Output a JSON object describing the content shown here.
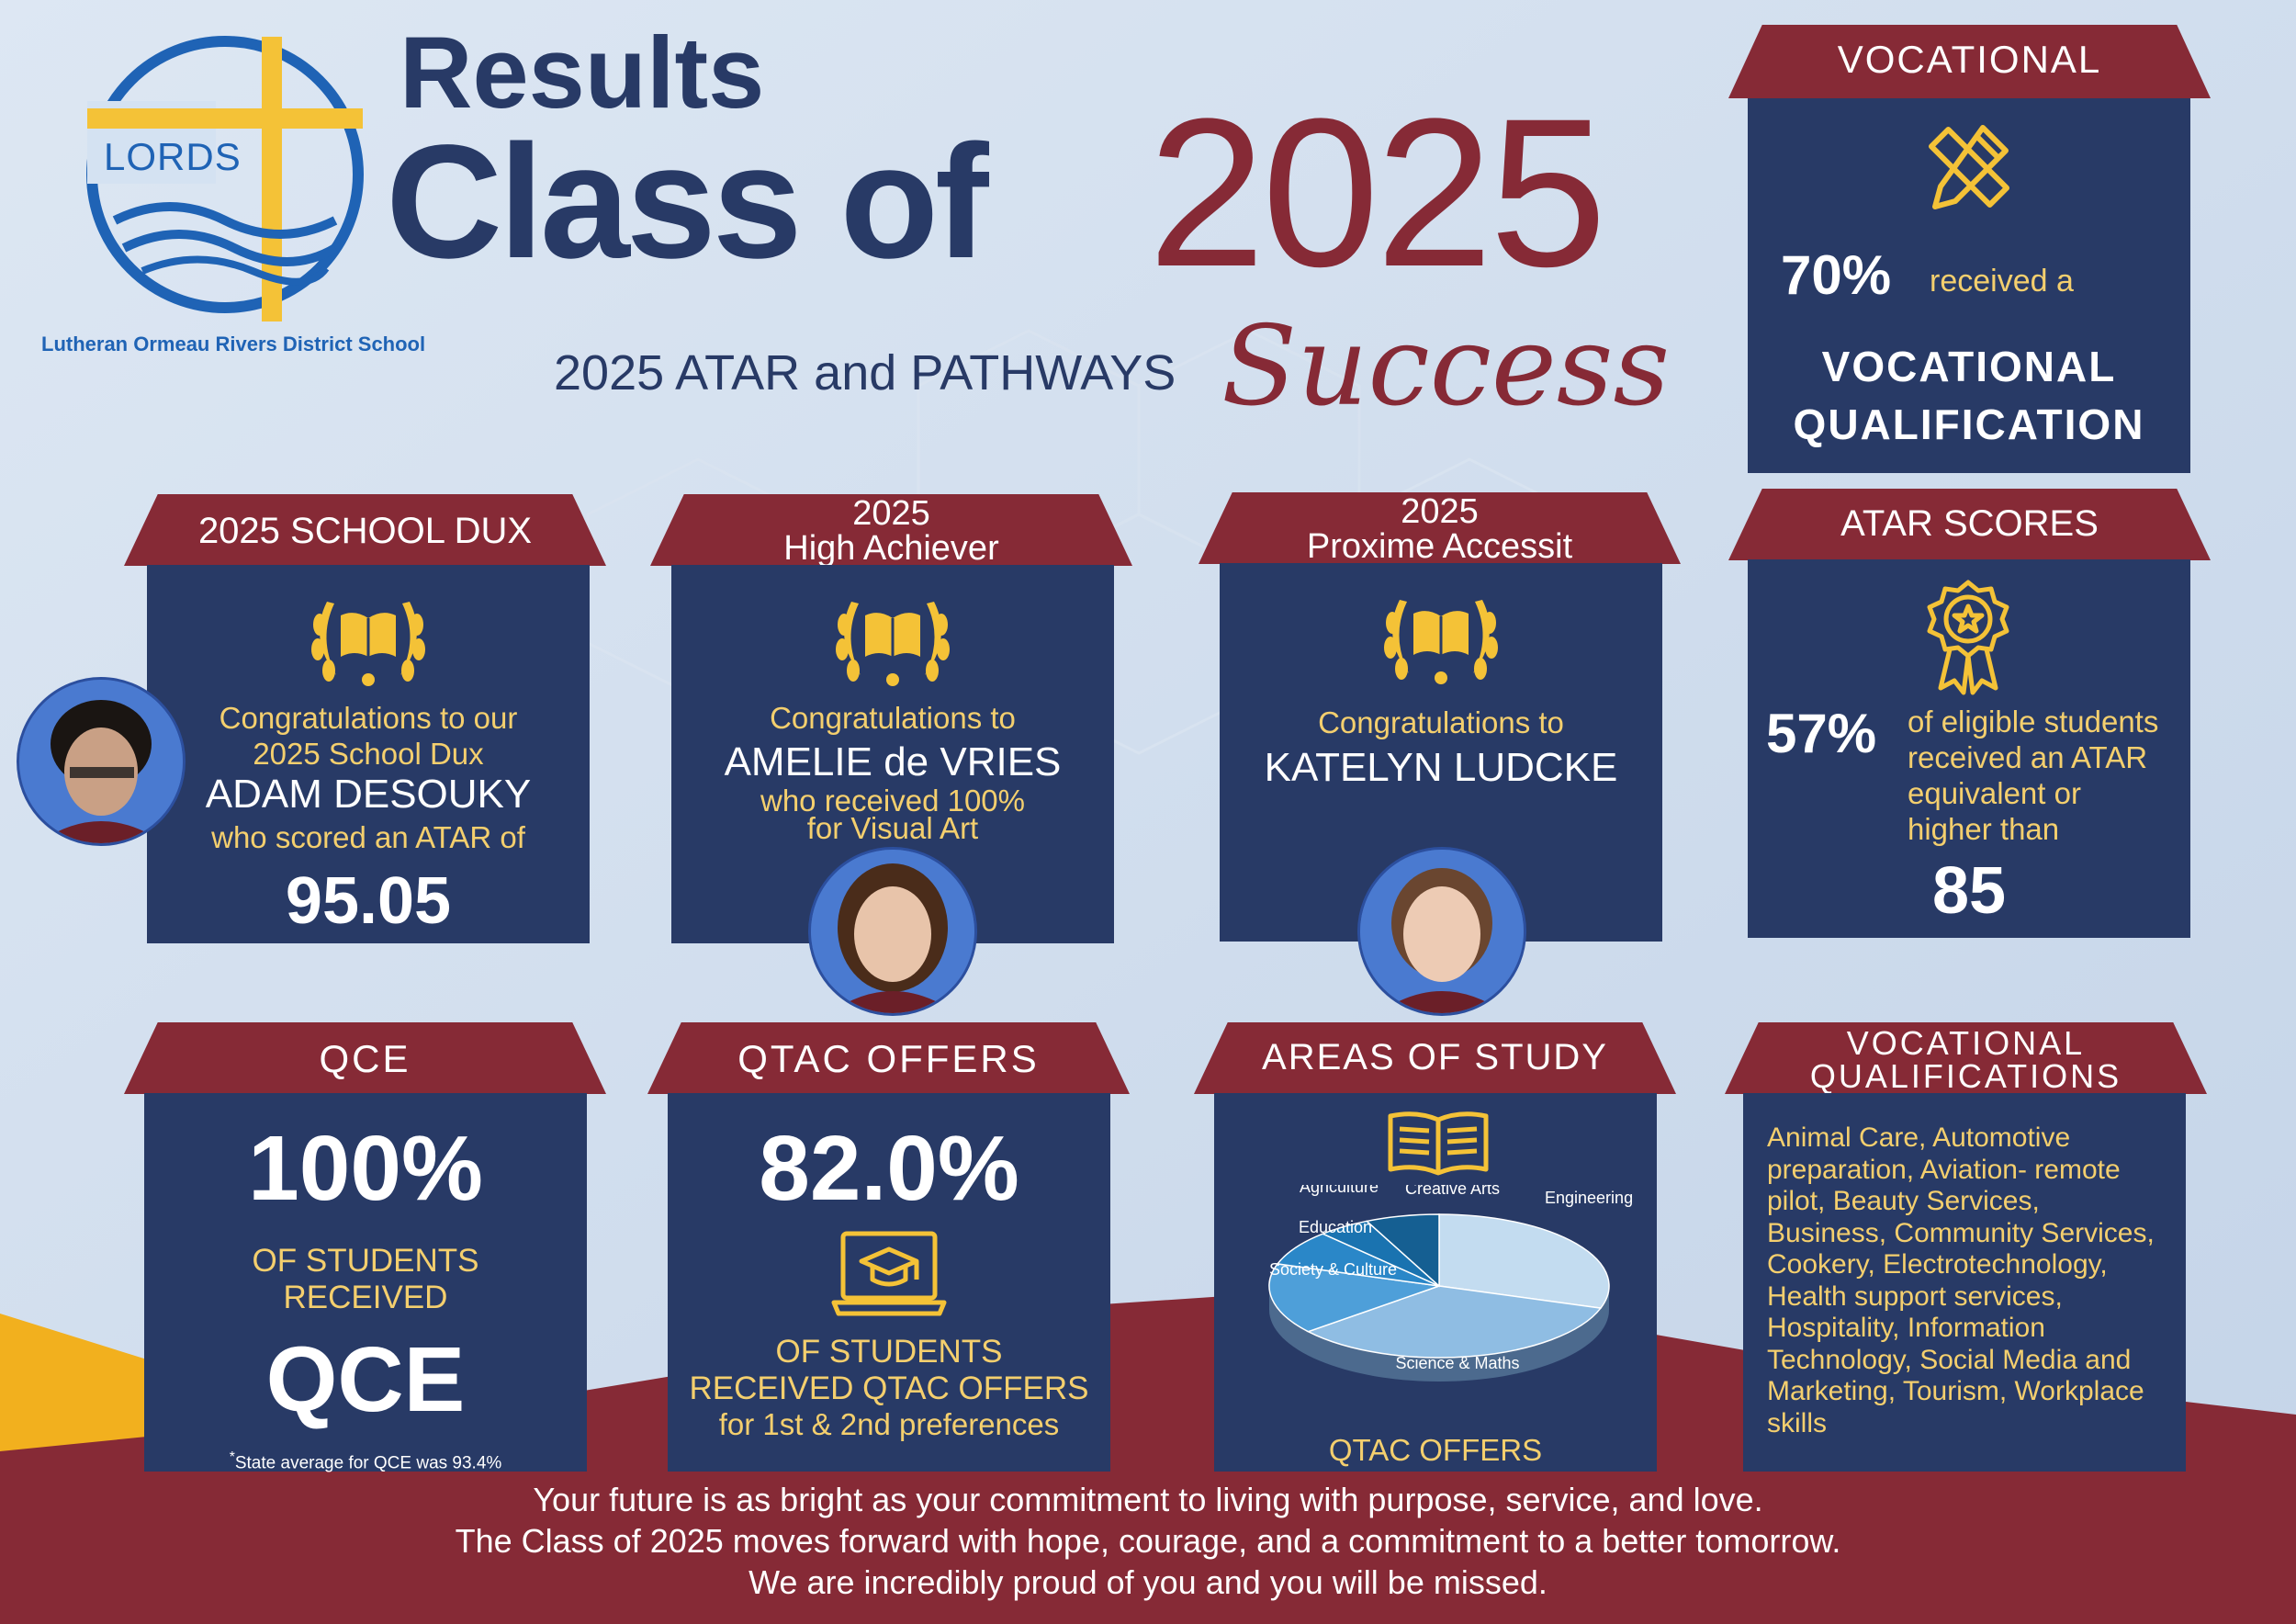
{
  "header": {
    "results": "Results",
    "class_of": "Class of",
    "year": "2025",
    "subtitle": "2025 ATAR and PATHWAYS",
    "success": "Success"
  },
  "logo": {
    "name": "LORDS",
    "school_name": "Lutheran Ormeau Rivers District School"
  },
  "vocational": {
    "title": "VOCATIONAL",
    "percent": "70%",
    "received": "received a",
    "qualification_line1": "VOCATIONAL",
    "qualification_line2": "QUALIFICATION"
  },
  "dux": {
    "title": "2025 SCHOOL DUX",
    "line1": "Congratulations to our",
    "line2": "2025 School Dux",
    "name": "ADAM DESOUKY",
    "line3": "who scored an ATAR of",
    "score": "95.05"
  },
  "high_achiever": {
    "title_line1": "2025",
    "title_line2": "High Achiever",
    "line1": "Congratulations to",
    "name": "AMELIE de VRIES",
    "line2": "who received 100%",
    "line3": "for Visual Art"
  },
  "proxime": {
    "title_line1": "2025",
    "title_line2": "Proxime Accessit",
    "line1": "Congratulations to",
    "name": "KATELYN LUDCKE"
  },
  "atar": {
    "title": "ATAR SCORES",
    "percent": "57%",
    "line1": "of eligible students",
    "line2": "received an ATAR",
    "line3": "equivalent or",
    "line4": "higher than",
    "value": "85"
  },
  "qce": {
    "title": "QCE",
    "percent": "100%",
    "line1": "OF STUDENTS",
    "line2": "RECEIVED",
    "big": "QCE",
    "note_mark": "*",
    "note": "State average for QCE was 93.4%"
  },
  "qtac": {
    "title": "QTAC OFFERS",
    "percent": "82.0%",
    "line1": "OF STUDENTS",
    "line2": "RECEIVED QTAC OFFERS",
    "line3": "for 1st & 2nd preferences"
  },
  "areas": {
    "title": "AREAS OF STUDY",
    "footer": "QTAC OFFERS"
  },
  "chart_data": {
    "type": "pie",
    "categories": [
      "Engineering",
      "Science & Maths",
      "Society & Culture",
      "Education",
      "Agriculture",
      "Creative Arts"
    ],
    "values": [
      30,
      34,
      16,
      8,
      5,
      7
    ],
    "colors": [
      "#c3dcf0",
      "#8fbde3",
      "#4e9fd9",
      "#2a87c8",
      "#1a73b0",
      "#155f92"
    ]
  },
  "voc_quals": {
    "title_line1": "VOCATIONAL",
    "title_line2": "QUALIFICATIONS",
    "lines": [
      "Animal Care, Automotive",
      "preparation, Aviation- remote",
      "pilot, Beauty Services,",
      "Business, Community Services,",
      "Cookery, Electrotechnology,",
      "Health support services,",
      "Hospitality, Information",
      "Technology, Social Media and",
      "Marketing, Tourism, Workplace",
      "skills"
    ]
  },
  "footer": {
    "line1": "Your future is as bright as your commitment to living with purpose, service, and love.",
    "line2": "The Class of 2025 moves forward with hope, courage, and a commitment to a better tomorrow.",
    "line3": "We are incredibly proud of you and you will be missed."
  },
  "colors": {
    "navy": "#283a66",
    "maroon": "#862a36",
    "gold": "#f4cf6e",
    "light_bg": "#cfdced"
  }
}
